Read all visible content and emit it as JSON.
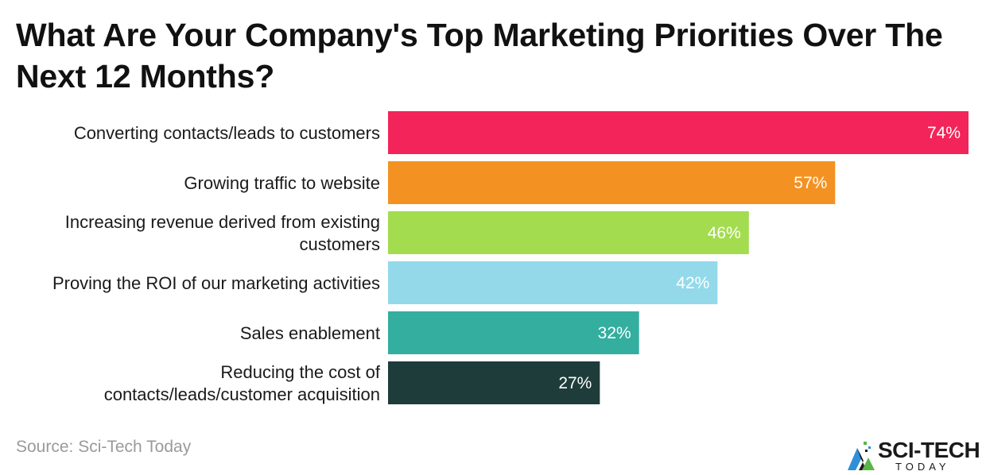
{
  "chart_data": {
    "type": "bar",
    "orientation": "horizontal",
    "title": "What Are Your Company's Top Marketing Priorities Over The Next 12 Months?",
    "categories": [
      [
        "Converting contacts/leads to customers"
      ],
      [
        "Growing traffic to website"
      ],
      [
        "Increasing revenue derived from existing",
        "customers"
      ],
      [
        "Proving the ROI of our marketing activities"
      ],
      [
        "Sales enablement"
      ],
      [
        "Reducing the cost of",
        "contacts/leads/customer acquisition"
      ]
    ],
    "values": [
      74,
      57,
      46,
      42,
      32,
      27
    ],
    "value_labels": [
      "74%",
      "57%",
      "46%",
      "42%",
      "32%",
      "27%"
    ],
    "colors": [
      "#f22459",
      "#f39222",
      "#a3dc4f",
      "#93d9ea",
      "#33ae9f",
      "#1e3c3a"
    ],
    "value_unit": "%",
    "xlim": [
      0,
      74
    ],
    "grid": false,
    "legend": "none"
  },
  "footer": {
    "source": "Source: Sci-Tech Today"
  },
  "logo": {
    "main_text": "SCI-TECH",
    "sub_text": "TODAY"
  }
}
